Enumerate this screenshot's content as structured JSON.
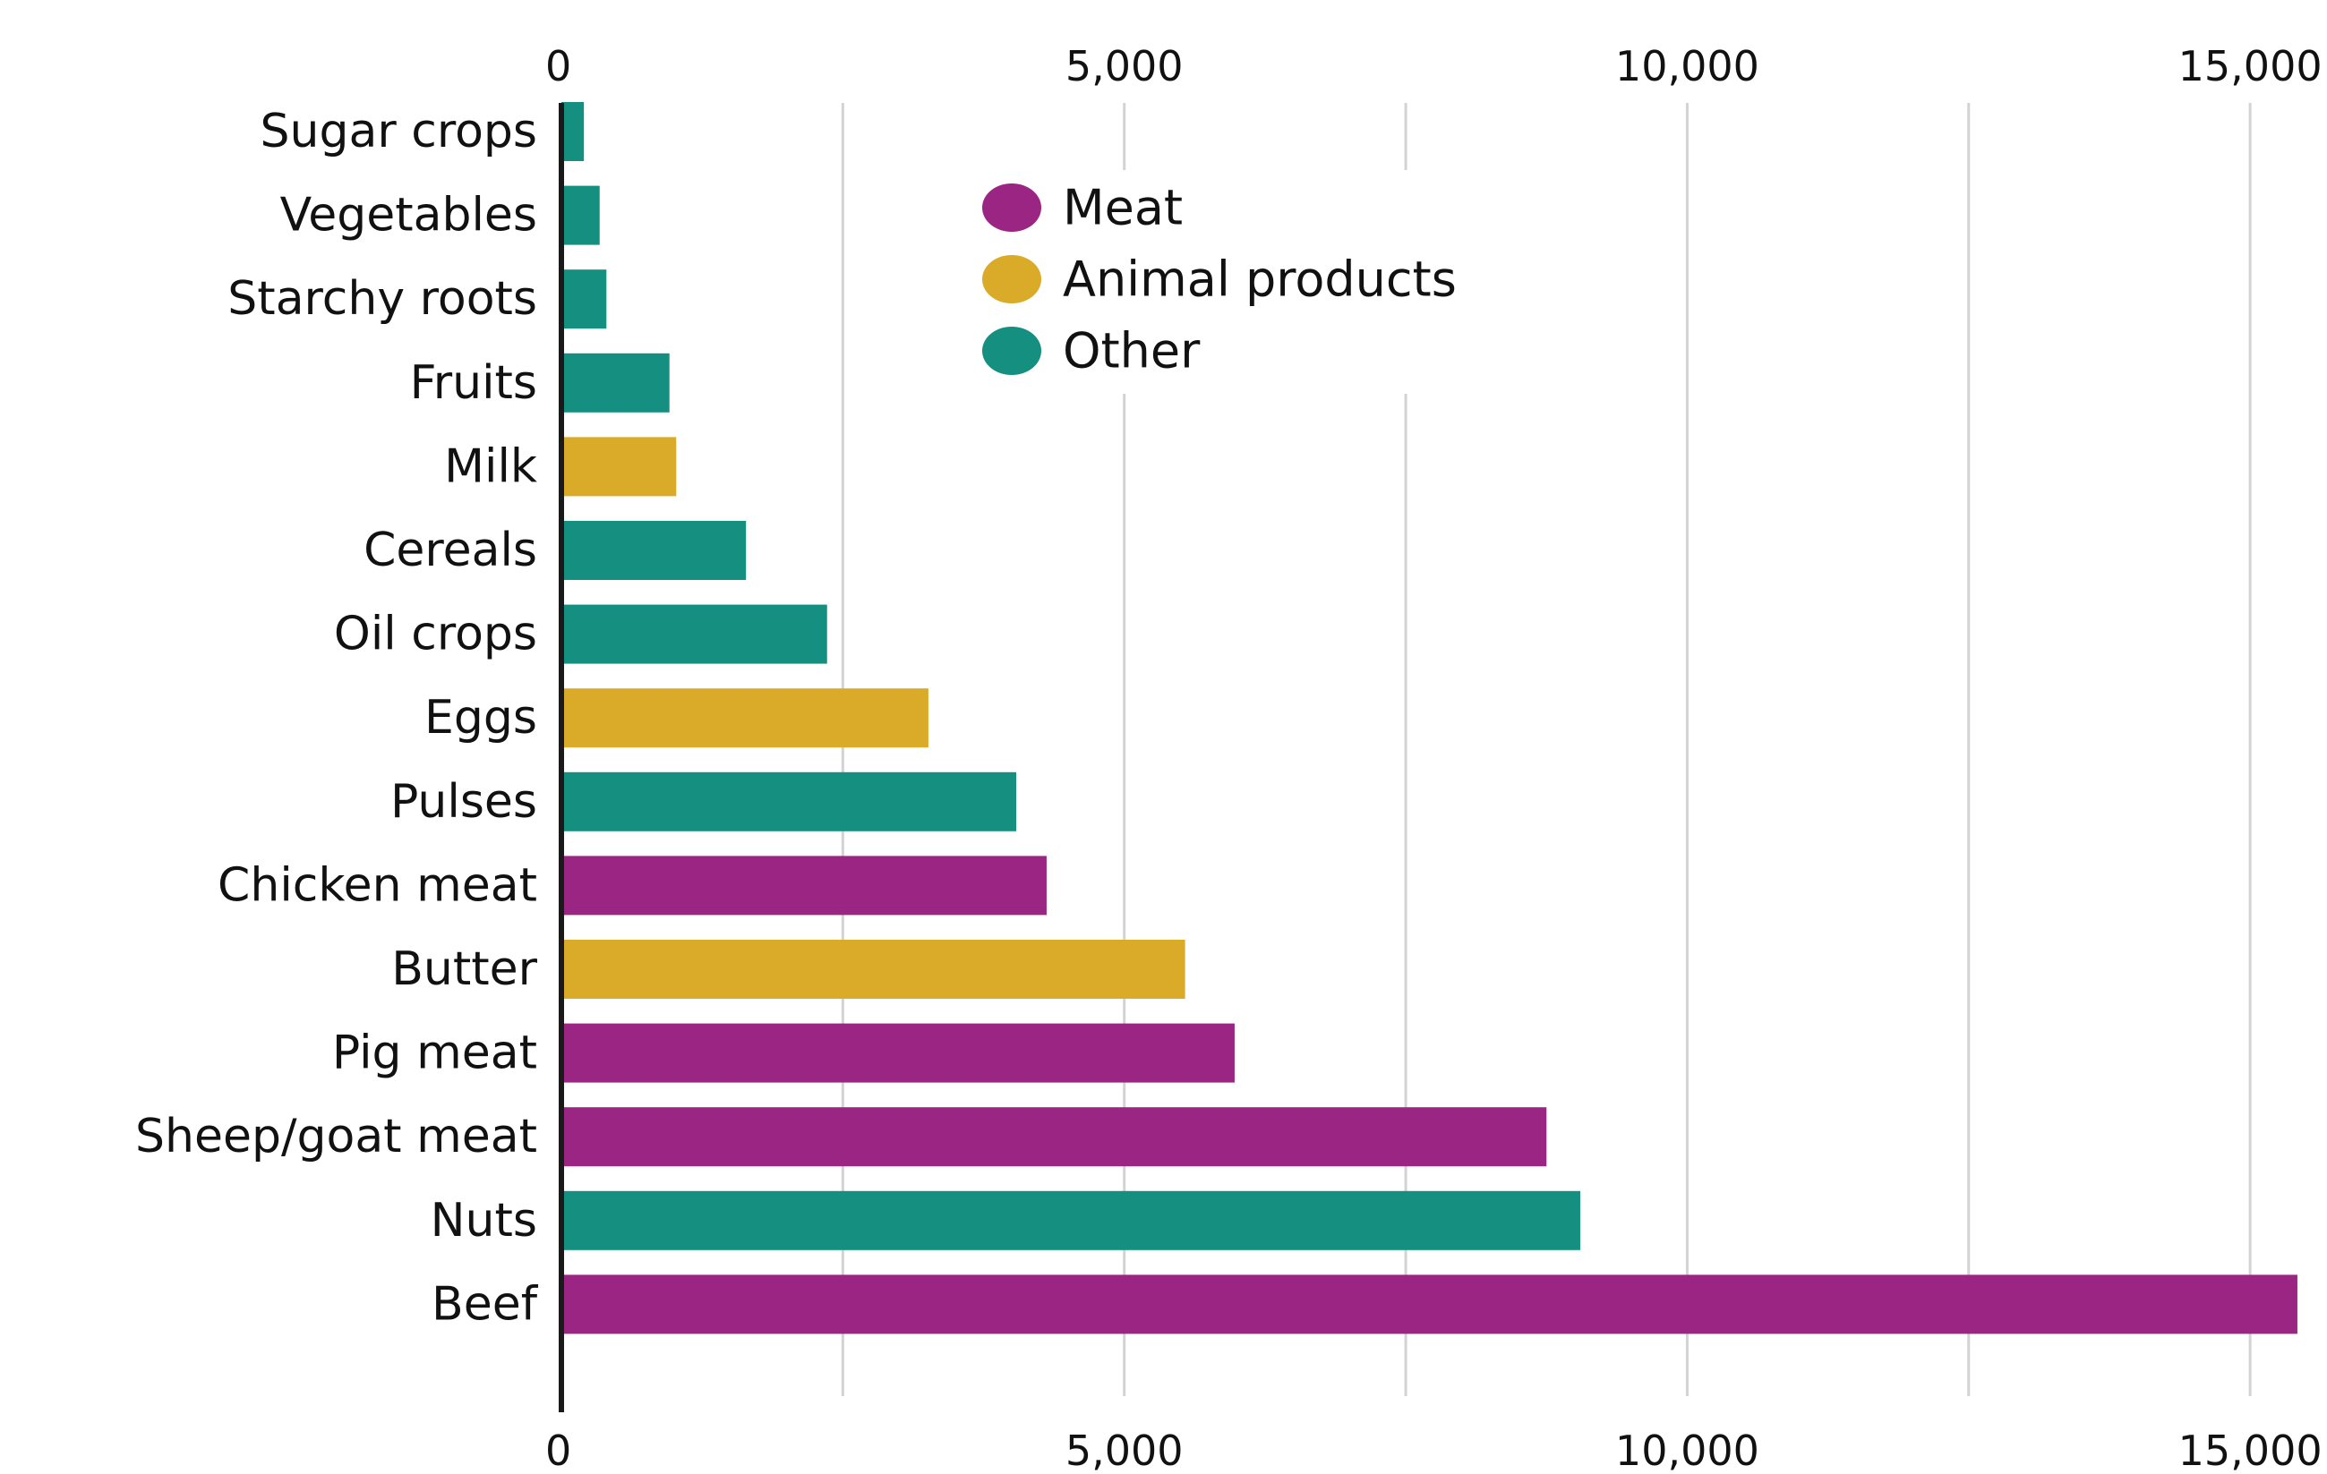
{
  "chart_data": {
    "type": "bar",
    "orientation": "horizontal",
    "title": "",
    "xlabel": "",
    "ylabel": "",
    "xlim": [
      0,
      15500
    ],
    "x_ticks": [
      0,
      5000,
      10000,
      15000
    ],
    "x_tick_labels": [
      "0",
      "5,000",
      "10,000",
      "15,000"
    ],
    "x_axis_labels_top_and_bottom": true,
    "grid": true,
    "grid_step": 2500,
    "legend_position": "top-center",
    "groups": [
      {
        "name": "Meat",
        "color": "#9b2583"
      },
      {
        "name": "Animal products",
        "color": "#d9ab29"
      },
      {
        "name": "Other",
        "color": "#159080"
      }
    ],
    "categories": [
      "Sugar crops",
      "Vegetables",
      "Starchy roots",
      "Fruits",
      "Milk",
      "Cereals",
      "Oil crops",
      "Eggs",
      "Pulses",
      "Chicken meat",
      "Butter",
      "Pig meat",
      "Sheep/goat meat",
      "Nuts",
      "Beef"
    ],
    "values": [
      200,
      340,
      400,
      960,
      1020,
      1640,
      2360,
      3260,
      4040,
      4310,
      5540,
      5980,
      8750,
      9050,
      15420
    ],
    "bar_groups": [
      "Other",
      "Other",
      "Other",
      "Other",
      "Animal products",
      "Other",
      "Other",
      "Animal products",
      "Other",
      "Meat",
      "Animal products",
      "Meat",
      "Meat",
      "Other",
      "Meat"
    ]
  }
}
